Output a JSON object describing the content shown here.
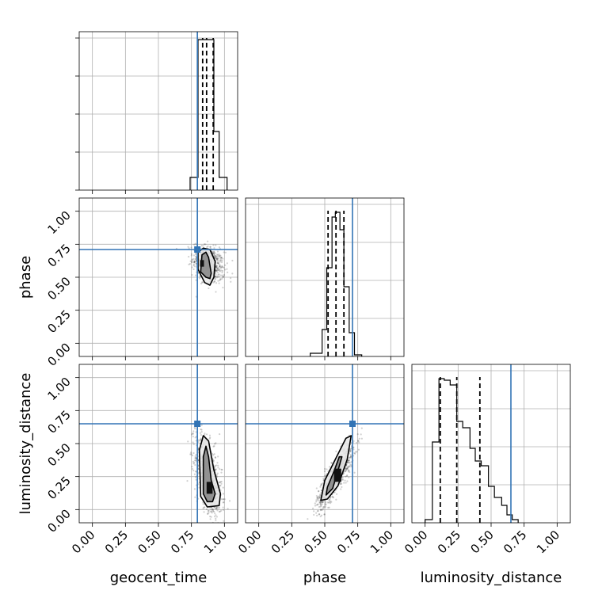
{
  "chart_data": {
    "type": "corner",
    "parameters": [
      "geocent_time",
      "phase",
      "luminosity_distance"
    ],
    "axis_range": [
      -0.1,
      1.1
    ],
    "tick_values": [
      0.0,
      0.25,
      0.5,
      0.75,
      1.0
    ],
    "tick_labels": [
      "0.00",
      "0.25",
      "0.50",
      "0.75",
      "1.00"
    ],
    "grid": true,
    "colors": {
      "truth": "#3274b5",
      "hist": "#000000",
      "contour": "#000000",
      "grid": "#b0b0b0"
    },
    "truths": {
      "geocent_time": 0.795,
      "phase": 0.71,
      "luminosity_distance": 0.65
    },
    "histograms": {
      "geocent_time": {
        "quantiles": [
          0.835,
          0.865,
          0.915
        ],
        "ymax_fraction": 0.96,
        "steps": [
          [
            0.74,
            0.08
          ],
          [
            0.8,
            0.95
          ],
          [
            0.92,
            0.37
          ],
          [
            0.96,
            0.08
          ],
          [
            1.02,
            0.0
          ]
        ]
      },
      "phase": {
        "quantiles": [
          0.525,
          0.585,
          0.645
        ],
        "ymax_fraction": 0.92,
        "steps": [
          [
            0.39,
            0.02
          ],
          [
            0.48,
            0.17
          ],
          [
            0.515,
            0.56
          ],
          [
            0.555,
            0.88
          ],
          [
            0.58,
            0.91
          ],
          [
            0.615,
            0.8
          ],
          [
            0.645,
            0.44
          ],
          [
            0.685,
            0.15
          ],
          [
            0.725,
            0.01
          ],
          [
            0.78,
            0.0
          ]
        ]
      },
      "luminosity_distance": {
        "quantiles": [
          0.115,
          0.24,
          0.415
        ],
        "ymax_fraction": 0.92,
        "steps": [
          [
            0.0,
            0.02
          ],
          [
            0.055,
            0.51
          ],
          [
            0.105,
            0.91
          ],
          [
            0.145,
            0.9
          ],
          [
            0.19,
            0.87
          ],
          [
            0.24,
            0.64
          ],
          [
            0.285,
            0.6
          ],
          [
            0.34,
            0.47
          ],
          [
            0.38,
            0.39
          ],
          [
            0.425,
            0.36
          ],
          [
            0.48,
            0.23
          ],
          [
            0.525,
            0.16
          ],
          [
            0.58,
            0.11
          ],
          [
            0.62,
            0.05
          ],
          [
            0.66,
            0.02
          ],
          [
            0.705,
            0.0
          ]
        ]
      }
    },
    "scatter_2d": [
      {
        "x_param": "geocent_time",
        "y_param": "phase",
        "center": [
          0.88,
          0.6
        ],
        "spread": [
          0.06,
          0.07
        ],
        "rho": -0.3,
        "n": 600,
        "contours": [
          [
            [
              0.82,
              0.54
            ],
            [
              0.83,
              0.67
            ],
            [
              0.86,
              0.69
            ],
            [
              0.88,
              0.65
            ],
            [
              0.9,
              0.53
            ],
            [
              0.89,
              0.49
            ],
            [
              0.86,
              0.5
            ]
          ],
          [
            [
              0.8,
              0.56
            ],
            [
              0.8,
              0.69
            ],
            [
              0.84,
              0.72
            ],
            [
              0.89,
              0.71
            ],
            [
              0.93,
              0.62
            ],
            [
              0.92,
              0.5
            ],
            [
              0.89,
              0.44
            ],
            [
              0.85,
              0.46
            ]
          ]
        ],
        "dense": [
          [
            0.815,
            0.58
          ],
          [
            0.815,
            0.63
          ],
          [
            0.845,
            0.63
          ],
          [
            0.845,
            0.58
          ]
        ]
      },
      {
        "x_param": "geocent_time",
        "y_param": "luminosity_distance",
        "center": [
          0.88,
          0.25
        ],
        "spread": [
          0.05,
          0.15
        ],
        "rho": -0.5,
        "n": 800,
        "contours": [
          [
            [
              0.84,
              0.12
            ],
            [
              0.84,
              0.4
            ],
            [
              0.86,
              0.48
            ],
            [
              0.88,
              0.4
            ],
            [
              0.9,
              0.22
            ],
            [
              0.93,
              0.12
            ],
            [
              0.91,
              0.06
            ],
            [
              0.87,
              0.06
            ]
          ],
          [
            [
              0.82,
              0.1
            ],
            [
              0.81,
              0.45
            ],
            [
              0.84,
              0.56
            ],
            [
              0.88,
              0.52
            ],
            [
              0.92,
              0.3
            ],
            [
              0.97,
              0.12
            ],
            [
              0.96,
              0.03
            ],
            [
              0.87,
              0.02
            ]
          ]
        ],
        "dense": [
          [
            0.865,
            0.12
          ],
          [
            0.865,
            0.21
          ],
          [
            0.91,
            0.21
          ],
          [
            0.91,
            0.12
          ]
        ]
      },
      {
        "x_param": "phase",
        "y_param": "luminosity_distance",
        "center": [
          0.58,
          0.25
        ],
        "spread": [
          0.07,
          0.12
        ],
        "rho": 0.85,
        "n": 800,
        "contours": [
          [
            [
              0.51,
              0.11
            ],
            [
              0.56,
              0.16
            ],
            [
              0.61,
              0.33
            ],
            [
              0.63,
              0.4
            ],
            [
              0.61,
              0.4
            ],
            [
              0.57,
              0.29
            ],
            [
              0.52,
              0.17
            ]
          ],
          [
            [
              0.47,
              0.07
            ],
            [
              0.52,
              0.08
            ],
            [
              0.6,
              0.18
            ],
            [
              0.67,
              0.38
            ],
            [
              0.7,
              0.56
            ],
            [
              0.66,
              0.54
            ],
            [
              0.59,
              0.4
            ],
            [
              0.5,
              0.22
            ]
          ]
        ],
        "dense": [
          [
            0.57,
            0.21
          ],
          [
            0.57,
            0.31
          ],
          [
            0.625,
            0.31
          ],
          [
            0.625,
            0.21
          ]
        ]
      }
    ]
  }
}
